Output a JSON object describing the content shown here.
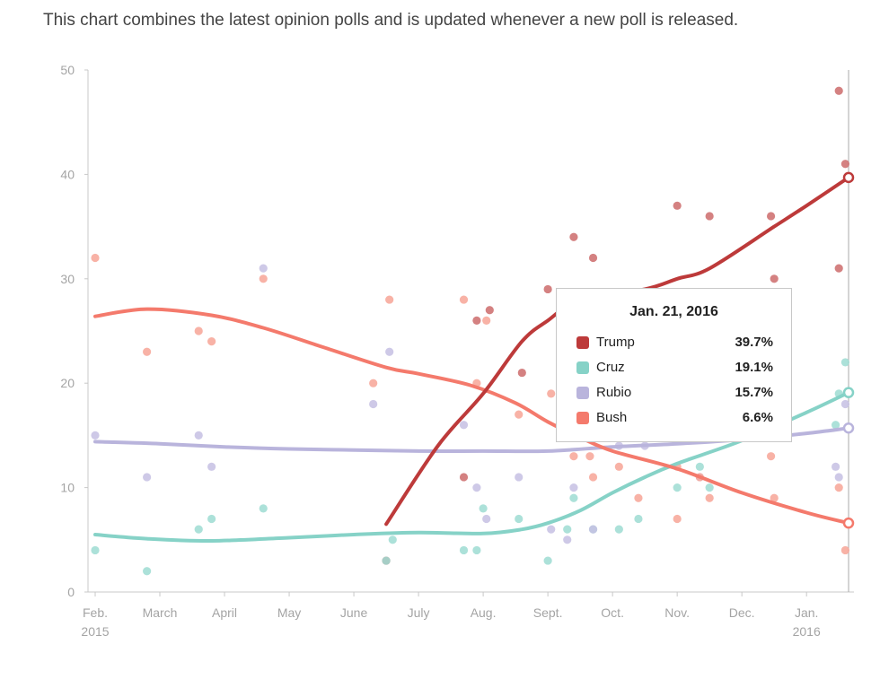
{
  "subtitle": "This chart combines the latest opinion polls and is updated whenever a new poll is released.",
  "tooltip": {
    "date": "Jan. 21, 2016",
    "rows": [
      {
        "name": "Trump",
        "value": "39.7%",
        "color": "#bd3a3a"
      },
      {
        "name": "Cruz",
        "value": "19.1%",
        "color": "#86d2c7"
      },
      {
        "name": "Rubio",
        "value": "15.7%",
        "color": "#b9b4dc"
      },
      {
        "name": "Bush",
        "value": "6.6%",
        "color": "#f47a6c"
      }
    ]
  },
  "chart_data": {
    "type": "line",
    "title": "",
    "xlabel": "",
    "ylabel": "",
    "ylim": [
      0,
      50
    ],
    "y_ticks": [
      0,
      10,
      20,
      30,
      40,
      50
    ],
    "x_ticks": [
      {
        "t": 0.0,
        "label": "Feb.",
        "sub": "2015"
      },
      {
        "t": 1.0,
        "label": "March",
        "sub": ""
      },
      {
        "t": 2.0,
        "label": "April",
        "sub": ""
      },
      {
        "t": 3.0,
        "label": "May",
        "sub": ""
      },
      {
        "t": 4.0,
        "label": "June",
        "sub": ""
      },
      {
        "t": 5.0,
        "label": "July",
        "sub": ""
      },
      {
        "t": 6.0,
        "label": "Aug.",
        "sub": ""
      },
      {
        "t": 7.0,
        "label": "Sept.",
        "sub": ""
      },
      {
        "t": 8.0,
        "label": "Oct.",
        "sub": ""
      },
      {
        "t": 9.0,
        "label": "Nov.",
        "sub": ""
      },
      {
        "t": 10.0,
        "label": "Dec.",
        "sub": ""
      },
      {
        "t": 11.0,
        "label": "Jan.",
        "sub": "2016"
      }
    ],
    "x_range": [
      -0.1,
      11.7
    ],
    "current_t": 11.65,
    "x_unit": "months since Feb. 1, 2015",
    "series": [
      {
        "name": "Trump",
        "color": "#bd3a3a",
        "dot_color": "#cd6b6b",
        "points": [
          [
            4.5,
            6.5
          ],
          [
            5.3,
            14
          ],
          [
            6.0,
            19
          ],
          [
            6.6,
            24
          ],
          [
            7.0,
            26
          ],
          [
            7.5,
            28
          ],
          [
            8.5,
            29
          ],
          [
            9.0,
            30
          ],
          [
            9.5,
            31
          ],
          [
            10.5,
            35
          ],
          [
            11.0,
            37
          ],
          [
            11.65,
            39.7
          ]
        ],
        "dots": [
          [
            4.5,
            3
          ],
          [
            5.7,
            11
          ],
          [
            5.9,
            26
          ],
          [
            6.1,
            27
          ],
          [
            6.6,
            21
          ],
          [
            7.0,
            29
          ],
          [
            7.4,
            34
          ],
          [
            7.7,
            32
          ],
          [
            9.0,
            37
          ],
          [
            9.5,
            36
          ],
          [
            10.45,
            36
          ],
          [
            10.5,
            30
          ],
          [
            11.5,
            31
          ],
          [
            11.5,
            48
          ],
          [
            11.6,
            41
          ]
        ]
      },
      {
        "name": "Cruz",
        "color": "#86d2c7",
        "dot_color": "#9ddcd2",
        "points": [
          [
            0.0,
            5.5
          ],
          [
            0.8,
            5.1
          ],
          [
            1.8,
            4.9
          ],
          [
            3.0,
            5.2
          ],
          [
            4.0,
            5.5
          ],
          [
            5.0,
            5.7
          ],
          [
            6.0,
            5.6
          ],
          [
            6.6,
            6.0
          ],
          [
            7.0,
            6.6
          ],
          [
            7.5,
            7.8
          ],
          [
            8.0,
            9.5
          ],
          [
            8.5,
            11.0
          ],
          [
            9.0,
            12.3
          ],
          [
            10.0,
            14.5
          ],
          [
            11.0,
            17.2
          ],
          [
            11.65,
            19.1
          ]
        ],
        "dots": [
          [
            0.0,
            4
          ],
          [
            0.8,
            2
          ],
          [
            1.6,
            6
          ],
          [
            1.8,
            7
          ],
          [
            2.6,
            8
          ],
          [
            4.5,
            3
          ],
          [
            4.6,
            5
          ],
          [
            5.7,
            4
          ],
          [
            5.9,
            4
          ],
          [
            6.0,
            8
          ],
          [
            6.55,
            7
          ],
          [
            7.0,
            3
          ],
          [
            7.3,
            6
          ],
          [
            7.4,
            9
          ],
          [
            7.7,
            6
          ],
          [
            8.1,
            6
          ],
          [
            8.4,
            7
          ],
          [
            9.0,
            10
          ],
          [
            9.35,
            12
          ],
          [
            9.5,
            10
          ],
          [
            11.45,
            16
          ],
          [
            11.5,
            19
          ],
          [
            11.6,
            22
          ]
        ]
      },
      {
        "name": "Rubio",
        "color": "#b9b4dc",
        "dot_color": "#c5c0e3",
        "points": [
          [
            0.0,
            14.4
          ],
          [
            1.0,
            14.2
          ],
          [
            2.0,
            13.9
          ],
          [
            3.0,
            13.7
          ],
          [
            4.0,
            13.6
          ],
          [
            5.0,
            13.5
          ],
          [
            6.0,
            13.5
          ],
          [
            7.0,
            13.5
          ],
          [
            8.0,
            13.9
          ],
          [
            9.0,
            14.2
          ],
          [
            10.0,
            14.6
          ],
          [
            11.0,
            15.2
          ],
          [
            11.65,
            15.7
          ]
        ],
        "dots": [
          [
            0.0,
            15
          ],
          [
            0.8,
            11
          ],
          [
            1.6,
            15
          ],
          [
            1.8,
            12
          ],
          [
            2.6,
            31
          ],
          [
            4.3,
            18
          ],
          [
            4.55,
            23
          ],
          [
            5.7,
            16
          ],
          [
            5.9,
            10
          ],
          [
            6.05,
            7
          ],
          [
            6.55,
            11
          ],
          [
            7.05,
            6
          ],
          [
            7.3,
            5
          ],
          [
            7.4,
            10
          ],
          [
            7.7,
            6
          ],
          [
            8.1,
            14
          ],
          [
            8.5,
            14
          ],
          [
            9.35,
            11
          ],
          [
            11.45,
            12
          ],
          [
            11.5,
            11
          ],
          [
            11.6,
            18
          ]
        ]
      },
      {
        "name": "Bush",
        "color": "#f47a6c",
        "dot_color": "#f7a496",
        "points": [
          [
            0.0,
            26.4
          ],
          [
            0.8,
            27.1
          ],
          [
            1.8,
            26.5
          ],
          [
            2.6,
            25.3
          ],
          [
            3.5,
            23.5
          ],
          [
            4.5,
            21.5
          ],
          [
            5.0,
            20.9
          ],
          [
            5.8,
            19.8
          ],
          [
            6.5,
            18.1
          ],
          [
            7.0,
            16.3
          ],
          [
            7.5,
            14.8
          ],
          [
            8.0,
            13.5
          ],
          [
            9.0,
            11.8
          ],
          [
            10.0,
            9.5
          ],
          [
            11.0,
            7.6
          ],
          [
            11.65,
            6.6
          ]
        ],
        "dots": [
          [
            0.0,
            32
          ],
          [
            0.8,
            23
          ],
          [
            1.6,
            25
          ],
          [
            1.8,
            24
          ],
          [
            2.6,
            30
          ],
          [
            4.3,
            20
          ],
          [
            4.55,
            28
          ],
          [
            5.7,
            28
          ],
          [
            5.9,
            20
          ],
          [
            6.05,
            26
          ],
          [
            6.55,
            17
          ],
          [
            7.05,
            19
          ],
          [
            7.4,
            13
          ],
          [
            7.65,
            13
          ],
          [
            7.7,
            11
          ],
          [
            8.1,
            12
          ],
          [
            8.4,
            9
          ],
          [
            9.0,
            7
          ],
          [
            9.0,
            12
          ],
          [
            9.35,
            11
          ],
          [
            9.5,
            9
          ],
          [
            10.45,
            13
          ],
          [
            10.5,
            9
          ],
          [
            11.5,
            10
          ],
          [
            11.6,
            4
          ]
        ]
      }
    ]
  }
}
